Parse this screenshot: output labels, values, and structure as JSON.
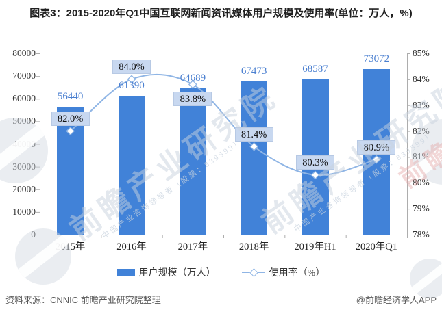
{
  "title": "图表3：2015-2020年Q1中国互联网新闻资讯媒体用户规模及使用率(单位：万人，%)",
  "chart_data": {
    "type": "bar",
    "categories": [
      "2015年",
      "2016年",
      "2017年",
      "2018年",
      "2019年H1",
      "2020年Q1"
    ],
    "series": [
      {
        "name": "用户规模（万人）",
        "type": "bar",
        "axis": "left",
        "values": [
          56440,
          61390,
          64689,
          67473,
          68587,
          73072
        ],
        "value_labels": [
          "56440",
          "61390",
          "64689",
          "67473",
          "68587",
          "73072"
        ]
      },
      {
        "name": "使用率（%）",
        "type": "line",
        "axis": "right",
        "values": [
          82.0,
          84.0,
          83.8,
          81.4,
          80.3,
          80.9
        ],
        "value_labels": [
          "82.0%",
          "84.0%",
          "83.8%",
          "81.4%",
          "80.3%",
          "80.9%"
        ],
        "label_placement": [
          "above",
          "above",
          "below",
          "above",
          "above",
          "above"
        ]
      }
    ],
    "left_axis": {
      "min": 0,
      "max": 80000,
      "step": 10000,
      "ticks": [
        "80000",
        "70000",
        "60000",
        "50000",
        "40000",
        "30000",
        "20000",
        "10000",
        "0"
      ]
    },
    "right_axis": {
      "min": 78,
      "max": 85,
      "step": 1,
      "ticks": [
        "85%",
        "84%",
        "83%",
        "82%",
        "81%",
        "80%",
        "79%",
        "78%"
      ]
    },
    "legend_position": "bottom",
    "grid": false,
    "colors": {
      "bar": "#4182D8",
      "line": "#8FB5E5",
      "marker_fill": "#FFFFFF",
      "bar_label": "#4A7FD0",
      "pct_box_bg": "#C8D8F0",
      "axis_line": "#ADADAD",
      "tick_text": "#333333"
    }
  },
  "footer": {
    "source": "资料来源：CNNIC  前瞻产业研究院整理",
    "credit": "@前瞻经济学人APP"
  },
  "watermark": {
    "text": "前瞻产业研究院",
    "subtext": "中国产业咨询领导者（股票：839599）",
    "pink_text": "前瞻产业"
  }
}
